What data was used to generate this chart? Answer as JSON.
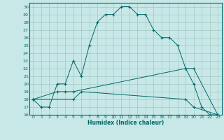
{
  "xlabel": "Humidex (Indice chaleur)",
  "bg_color": "#c8e8e8",
  "line_color": "#006868",
  "grid_color": "#a0c8c0",
  "xlim": [
    -0.5,
    23.5
  ],
  "ylim": [
    16,
    30.5
  ],
  "yticks": [
    16,
    17,
    18,
    19,
    20,
    21,
    22,
    23,
    24,
    25,
    26,
    27,
    28,
    29,
    30
  ],
  "xticks": [
    0,
    1,
    2,
    3,
    4,
    5,
    6,
    7,
    8,
    9,
    10,
    11,
    12,
    13,
    14,
    15,
    16,
    17,
    18,
    19,
    20,
    21,
    22,
    23
  ],
  "line1_x": [
    0,
    1,
    2,
    3,
    4,
    5,
    6,
    7,
    8,
    9,
    10,
    11,
    12,
    13,
    14,
    15,
    16,
    17,
    18,
    19,
    20,
    21,
    22,
    23
  ],
  "line1_y": [
    18,
    17,
    17,
    20,
    20,
    23,
    21,
    25,
    28,
    29,
    29,
    30,
    30,
    29,
    29,
    27,
    26,
    26,
    25,
    22,
    20,
    17,
    16,
    16
  ],
  "line2_x": [
    0,
    3,
    4,
    5,
    19,
    20,
    23
  ],
  "line2_y": [
    18,
    19,
    19,
    19,
    22,
    22,
    16
  ],
  "line3_x": [
    0,
    5,
    6,
    19,
    20,
    23
  ],
  "line3_y": [
    18,
    18,
    19,
    18,
    17,
    16
  ]
}
